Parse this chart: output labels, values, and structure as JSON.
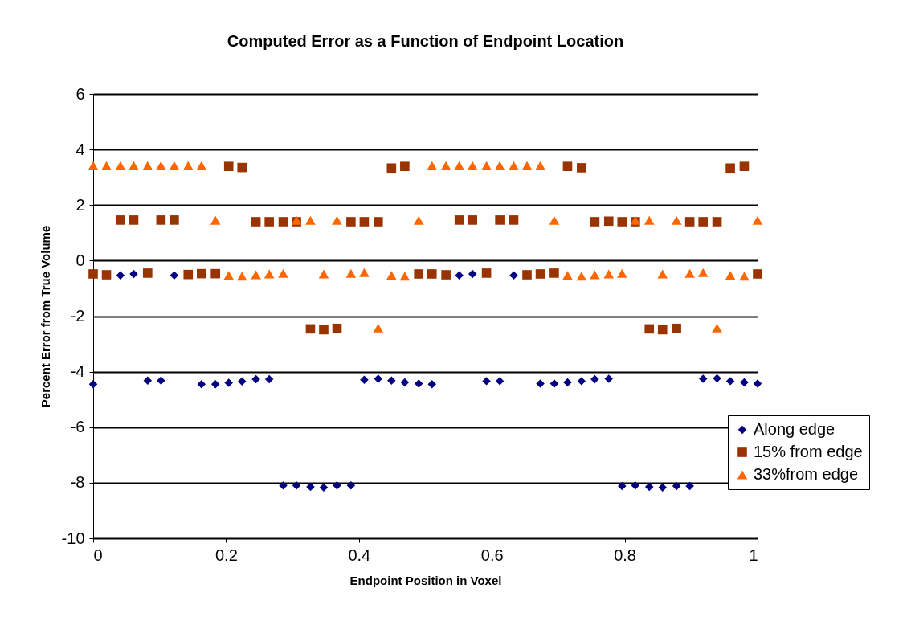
{
  "chart_data": {
    "type": "scatter",
    "title": "Computed Error as a Function of Endpoint Location",
    "xlabel": "Endpoint Position in Voxel",
    "ylabel": "Percent Error from True Volume",
    "x": [
      0,
      0.02,
      0.041,
      0.061,
      0.082,
      0.102,
      0.122,
      0.143,
      0.163,
      0.184,
      0.204,
      0.224,
      0.245,
      0.265,
      0.286,
      0.306,
      0.327,
      0.347,
      0.367,
      0.388,
      0.408,
      0.429,
      0.449,
      0.469,
      0.49,
      0.51,
      0.531,
      0.551,
      0.571,
      0.592,
      0.612,
      0.633,
      0.653,
      0.673,
      0.694,
      0.714,
      0.735,
      0.755,
      0.776,
      0.796,
      0.816,
      0.837,
      0.857,
      0.878,
      0.898,
      0.918,
      0.939,
      0.959,
      0.98,
      1
    ],
    "series": [
      {
        "name": "Along edge",
        "color": "#000080",
        "marker": "diamond",
        "values": [
          -4.45,
          null,
          -0.53,
          -0.48,
          -4.32,
          -4.32,
          -0.53,
          null,
          -4.45,
          -4.45,
          -4.4,
          -4.35,
          -4.27,
          -4.27,
          -8.1,
          -8.1,
          -8.15,
          -8.17,
          -8.1,
          -8.1,
          -4.29,
          -4.26,
          -4.32,
          -4.39,
          -4.43,
          -4.45,
          null,
          -0.53,
          -0.48,
          -4.34,
          -4.34,
          -0.53,
          null,
          -4.43,
          -4.43,
          -4.39,
          -4.34,
          -4.27,
          -4.26,
          -8.12,
          -8.1,
          -8.15,
          -8.17,
          -8.12,
          -8.12,
          -4.26,
          -4.24,
          -4.34,
          -4.39,
          -4.43
        ]
      },
      {
        "name": "15% from edge",
        "color": "#993300",
        "marker": "square",
        "values": [
          -0.48,
          -0.51,
          1.46,
          1.46,
          -0.45,
          1.46,
          1.46,
          -0.5,
          -0.47,
          -0.47,
          3.39,
          3.35,
          1.4,
          1.4,
          1.4,
          1.4,
          -2.46,
          -2.49,
          -2.44,
          1.4,
          1.4,
          1.4,
          3.33,
          3.39,
          -0.48,
          -0.48,
          -0.51,
          1.46,
          1.46,
          -0.45,
          1.46,
          1.46,
          -0.51,
          -0.48,
          -0.45,
          3.39,
          3.34,
          1.4,
          1.42,
          1.4,
          1.4,
          -2.46,
          -2.49,
          -2.44,
          1.4,
          1.4,
          1.4,
          3.33,
          3.39,
          -0.48
        ]
      },
      {
        "name": "33%from edge",
        "color": "#ff6600",
        "marker": "triangle",
        "values": [
          3.42,
          3.42,
          3.42,
          3.42,
          3.42,
          3.42,
          3.42,
          3.42,
          3.42,
          1.45,
          -0.53,
          -0.56,
          -0.51,
          -0.48,
          -0.46,
          1.45,
          1.45,
          -0.48,
          1.45,
          -0.46,
          -0.43,
          -2.43,
          -0.53,
          -0.56,
          1.45,
          3.42,
          3.42,
          3.42,
          3.42,
          3.42,
          3.42,
          3.42,
          3.42,
          3.42,
          1.45,
          -0.53,
          -0.56,
          -0.51,
          -0.48,
          -0.46,
          1.45,
          1.45,
          -0.48,
          1.45,
          -0.46,
          -0.43,
          -2.43,
          -0.53,
          -0.56,
          1.45
        ]
      }
    ],
    "xlim": [
      0,
      1
    ],
    "xticks": [
      0,
      0.2,
      0.4,
      0.6,
      0.8,
      1
    ],
    "ylim": [
      -10,
      6
    ],
    "yticks": [
      -10,
      -8,
      -6,
      -4,
      -2,
      0,
      2,
      4,
      6
    ],
    "grid": "y",
    "legend": "bottom right"
  }
}
